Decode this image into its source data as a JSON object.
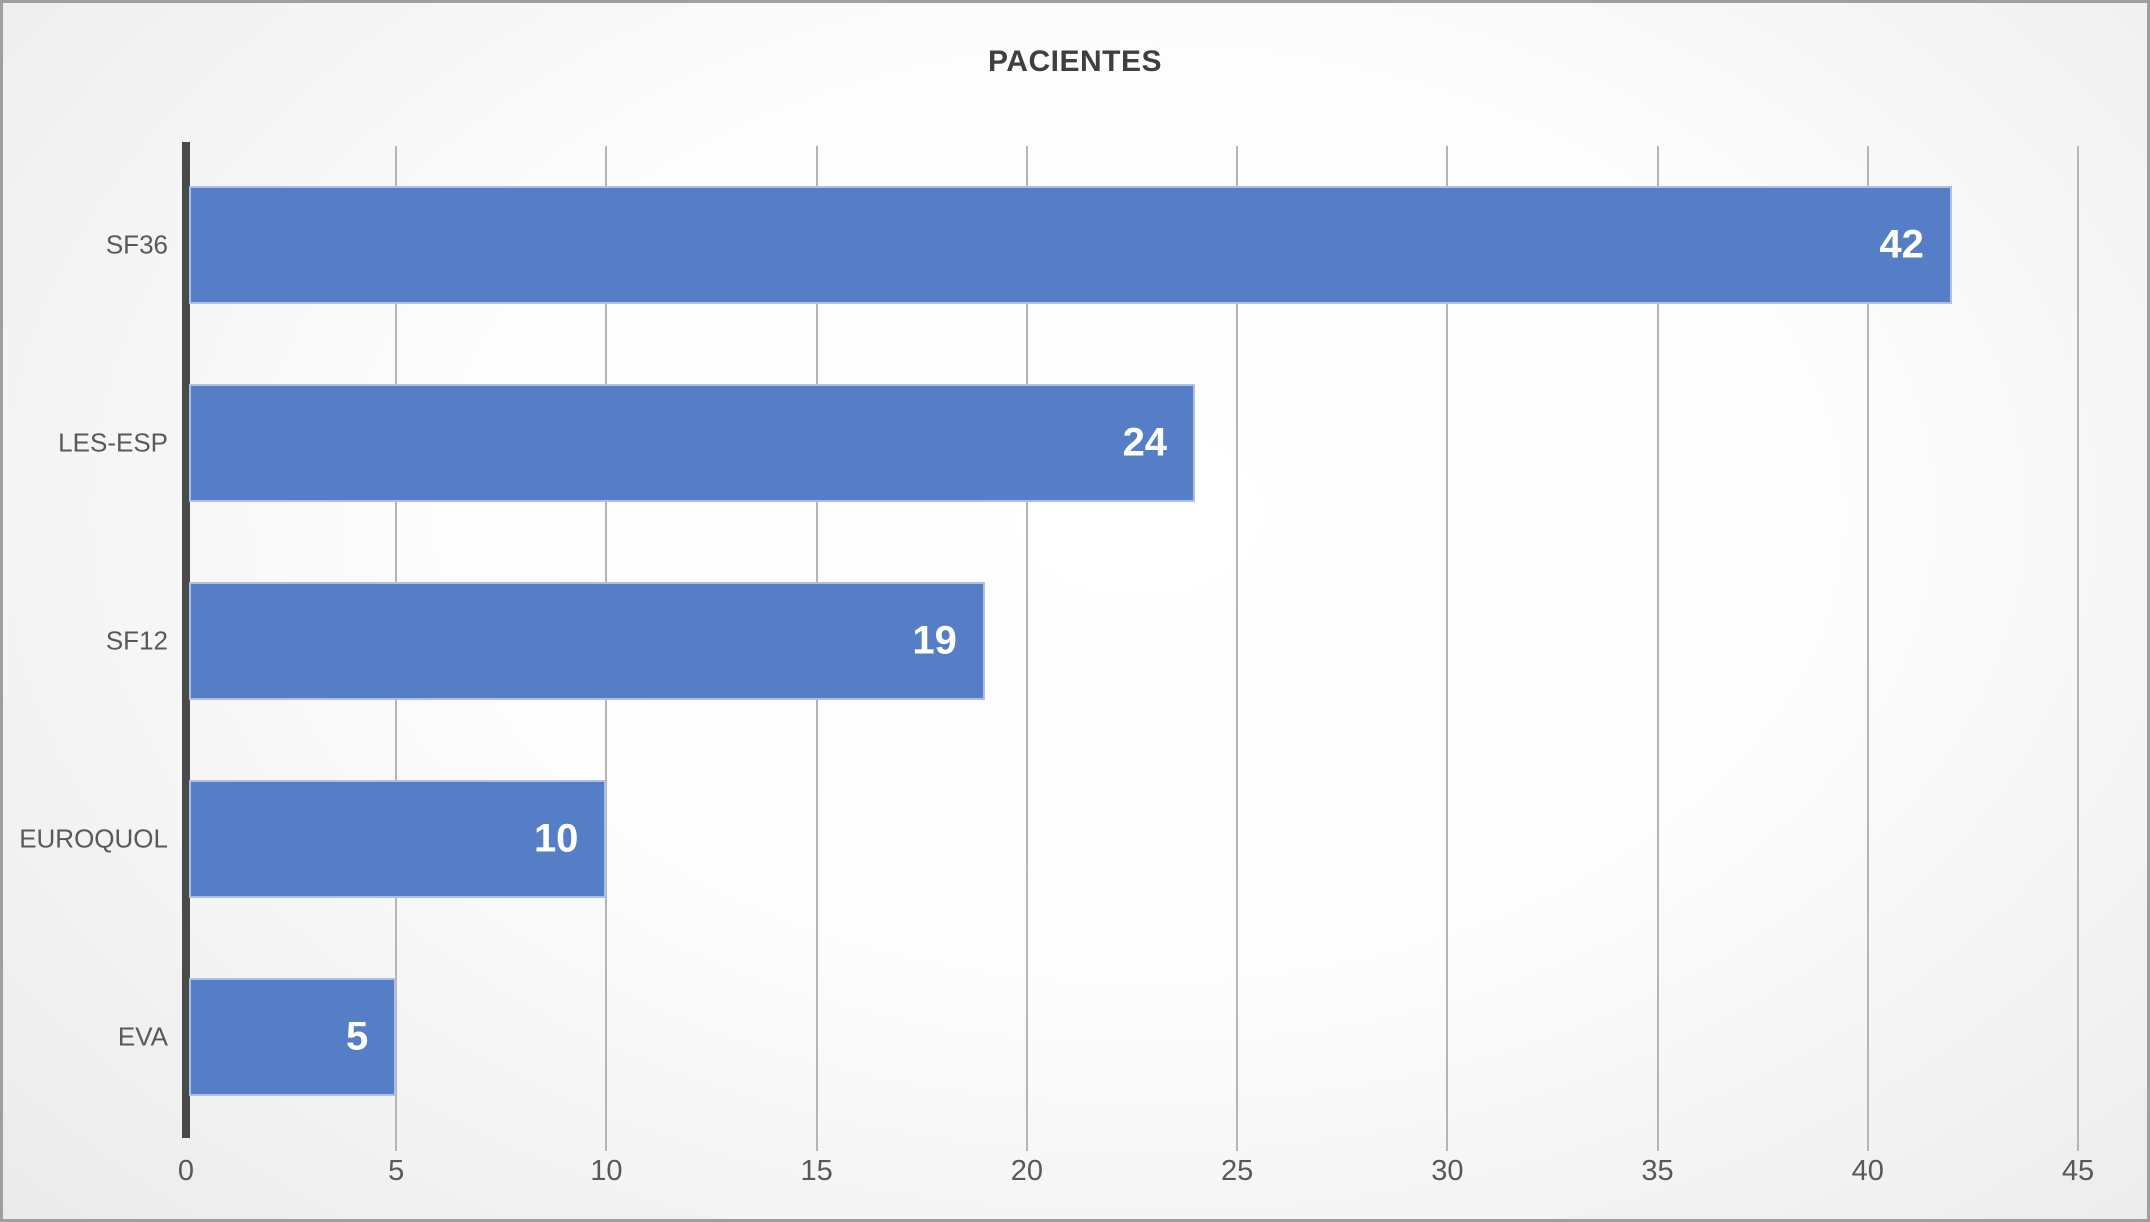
{
  "chart_data": {
    "type": "bar",
    "orientation": "horizontal",
    "title": "PACIENTES",
    "categories": [
      "SF36",
      "LES-ESP",
      "SF12",
      "EUROQUOL",
      "EVA"
    ],
    "values": [
      42,
      24,
      19,
      10,
      5
    ],
    "data_labels": [
      "42",
      "24",
      "19",
      "10",
      "5"
    ],
    "data_label_position": "inside-end",
    "xlabel": "",
    "ylabel": "",
    "xlim": [
      0,
      45
    ],
    "xticks": [
      0,
      5,
      10,
      15,
      20,
      25,
      30,
      35,
      40,
      45
    ],
    "grid": true,
    "legend": false,
    "colors": {
      "bar_fill": "#567ec7",
      "bar_border": "#aebfe6",
      "data_label_text": "#ffffff",
      "gridline": "#b5b5b5",
      "axis_line": "#4a4a4a",
      "tick_text": "#595959",
      "category_text": "#595959",
      "title_text": "#3f3f3f",
      "background_center": "#ffffff",
      "background_edge": "#c7c7c7",
      "frame_border": "#9f9f9f"
    }
  }
}
